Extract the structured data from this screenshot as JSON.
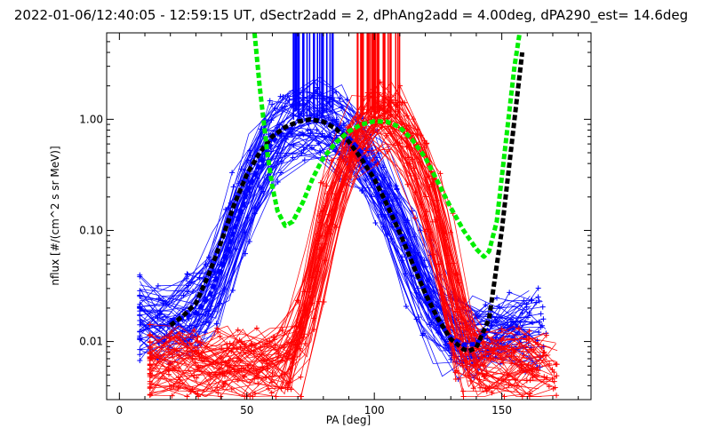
{
  "chart_data": {
    "type": "line",
    "title": "2022-01-06/12:40:05 - 12:59:15 UT, dSectr2add = 2, dPhAng2add = 4.00deg, dPA290_est=  14.6deg",
    "xlabel": "PA [deg]",
    "ylabel": "nflux [#/(cm^2 s sr MeV)]",
    "xlim": [
      -5,
      185
    ],
    "ylim": [
      0.003,
      6.0
    ],
    "yscale": "log",
    "grid": false,
    "x_ticks": [
      {
        "value": 0,
        "label": "0"
      },
      {
        "value": 50,
        "label": "50"
      },
      {
        "value": 100,
        "label": "100"
      },
      {
        "value": 150,
        "label": "150"
      }
    ],
    "y_ticks": [
      {
        "value": 0.01,
        "label": "0.01"
      },
      {
        "value": 0.1,
        "label": "0.10"
      },
      {
        "value": 1.0,
        "label": "1.00"
      }
    ],
    "colors": {
      "blue": "#0000ff",
      "red": "#ff0000",
      "black_fit": "#000000",
      "green_fit": "#00ee00"
    },
    "series": [
      {
        "color": "blue",
        "style": "dashed-thick",
        "x": [
          20,
          25,
          30,
          35,
          40,
          45,
          50,
          55,
          60,
          65,
          70,
          75,
          80,
          85,
          90,
          95,
          100,
          105,
          110,
          115,
          120,
          125,
          130,
          135,
          140,
          145
        ],
        "y": [
          0.0155,
          0.0165,
          0.018,
          0.025,
          0.045,
          0.1,
          0.22,
          0.4,
          0.62,
          0.82,
          0.96,
          1.0,
          0.96,
          0.86,
          0.68,
          0.5,
          0.32,
          0.19,
          0.1,
          0.055,
          0.027,
          0.015,
          0.0108,
          0.0093,
          0.0095,
          0.013
        ]
      },
      {
        "color": "black_fit",
        "style": "dashed-thick",
        "x": [
          20,
          25,
          30,
          35,
          40,
          45,
          50,
          55,
          60,
          65,
          70,
          75,
          80,
          85,
          90,
          95,
          100,
          105,
          110,
          115,
          120,
          125,
          130,
          135,
          137,
          140,
          145,
          150,
          155,
          158
        ],
        "y": [
          0.014,
          0.017,
          0.022,
          0.04,
          0.08,
          0.17,
          0.32,
          0.5,
          0.7,
          0.85,
          0.95,
          1.0,
          0.95,
          0.82,
          0.63,
          0.44,
          0.29,
          0.17,
          0.095,
          0.05,
          0.027,
          0.016,
          0.0105,
          0.0085,
          0.0082,
          0.0088,
          0.016,
          0.1,
          1.0,
          4.0
        ]
      },
      {
        "color": "green_fit",
        "style": "dashed-thick",
        "x": [
          53,
          55,
          58,
          60,
          62,
          65,
          68,
          72,
          76,
          80,
          85,
          90,
          95,
          100,
          105,
          110,
          115,
          120,
          125,
          130,
          135,
          140,
          143,
          145,
          148,
          150,
          153,
          155,
          157
        ],
        "y": [
          6.0,
          2.0,
          0.5,
          0.25,
          0.15,
          0.11,
          0.12,
          0.18,
          0.3,
          0.45,
          0.62,
          0.78,
          0.9,
          0.96,
          0.95,
          0.85,
          0.65,
          0.45,
          0.27,
          0.16,
          0.1,
          0.068,
          0.058,
          0.065,
          0.12,
          0.3,
          1.2,
          3.0,
          6.0
        ]
      }
    ]
  }
}
